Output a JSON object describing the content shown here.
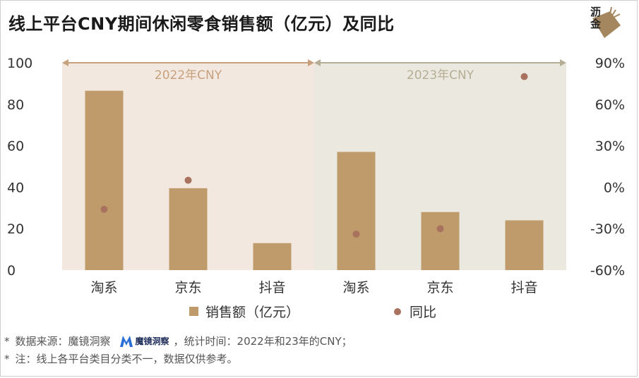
{
  "title": "线上平台CNY期间休闲零食销售额（亿元）及同比",
  "logo": {
    "text": "沥金"
  },
  "chart_data": {
    "type": "bar",
    "categories": [
      "淘系",
      "京东",
      "抖音",
      "淘系",
      "京东",
      "抖音"
    ],
    "groups": [
      {
        "label": "2022年CNY",
        "categories": [
          0,
          1,
          2
        ],
        "color": "#f3e8df"
      },
      {
        "label": "2023年CNY",
        "categories": [
          3,
          4,
          5
        ],
        "color": "#ebe8e0"
      }
    ],
    "series": [
      {
        "name": "销售额（亿元）",
        "type": "bar",
        "axis": "left",
        "color": "#bf9a6b",
        "values": [
          86.5,
          39.5,
          13,
          57,
          28,
          24
        ]
      },
      {
        "name": "同比",
        "type": "scatter",
        "axis": "right",
        "color": "#a9725f",
        "values": [
          -16,
          5,
          null,
          -34,
          -30,
          80
        ]
      }
    ],
    "yleft": {
      "ylim": [
        0,
        100
      ],
      "ticks": [
        "0",
        "20",
        "40",
        "60",
        "80",
        "100"
      ]
    },
    "yright": {
      "ylim": [
        -60,
        90
      ],
      "ticks": [
        "-60%",
        "-30%",
        "0%",
        "30%",
        "60%",
        "90%"
      ]
    }
  },
  "legend": {
    "bar": "销售额（亿元）",
    "dot": "同比"
  },
  "notes": {
    "line1_prefix": "数据来源：魔镜洞察",
    "line1_brand": "魔镜洞察",
    "line1_suffix": "，统计时间：2022年和23年的CNY；",
    "line2": "注：线上各平台类目分类不一，数据仅供参考。",
    "mark": "*"
  }
}
